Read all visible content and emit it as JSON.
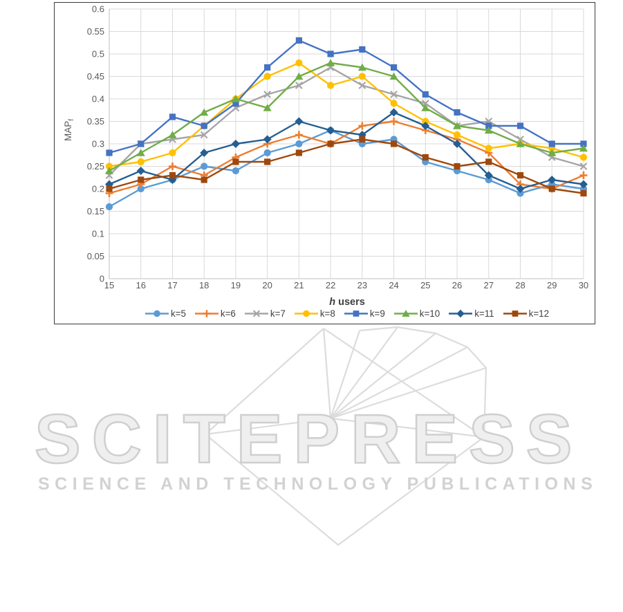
{
  "watermark": {
    "brand": "SCITEPRESS",
    "tagline": "SCIENCE AND TECHNOLOGY PUBLICATIONS"
  },
  "chart_data": {
    "type": "line",
    "title": "",
    "xlabel_italic": "h",
    "xlabel_rest": " users",
    "ylabel_main": "MAP",
    "ylabel_sub": "f",
    "ylim": [
      0,
      0.6
    ],
    "ytick_step": 0.05,
    "grid": true,
    "legend_position": "bottom",
    "grid_color": "#D9D9D9",
    "axis_color": "#BFBFBF",
    "tick_label_color": "#595959",
    "y_ticks": [
      "0",
      "0.05",
      "0.1",
      "0.15",
      "0.2",
      "0.25",
      "0.3",
      "0.35",
      "0.4",
      "0.45",
      "0.5",
      "0.55",
      "0.6"
    ],
    "categories": [
      "15",
      "16",
      "17",
      "18",
      "19",
      "20",
      "21",
      "22",
      "23",
      "24",
      "25",
      "26",
      "27",
      "28",
      "29",
      "30"
    ],
    "series": [
      {
        "name": "k=5",
        "color": "#5B9BD5",
        "marker": "circle",
        "values": [
          0.16,
          0.2,
          0.22,
          0.25,
          0.24,
          0.28,
          0.3,
          0.33,
          0.3,
          0.31,
          0.26,
          0.24,
          0.22,
          0.19,
          0.21,
          0.2
        ]
      },
      {
        "name": "k=6",
        "color": "#ED7D31",
        "marker": "plus",
        "values": [
          0.19,
          0.21,
          0.25,
          0.23,
          0.27,
          0.3,
          0.32,
          0.3,
          0.34,
          0.35,
          0.33,
          0.31,
          0.28,
          0.21,
          0.2,
          0.23
        ]
      },
      {
        "name": "k=7",
        "color": "#A5A5A5",
        "marker": "x",
        "values": [
          0.23,
          0.3,
          0.31,
          0.32,
          0.38,
          0.41,
          0.43,
          0.47,
          0.43,
          0.41,
          0.39,
          0.34,
          0.35,
          0.31,
          0.27,
          0.25
        ]
      },
      {
        "name": "k=8",
        "color": "#FFC000",
        "marker": "circle",
        "values": [
          0.25,
          0.26,
          0.28,
          0.34,
          0.4,
          0.45,
          0.48,
          0.43,
          0.45,
          0.39,
          0.35,
          0.32,
          0.29,
          0.3,
          0.29,
          0.27
        ]
      },
      {
        "name": "k=9",
        "color": "#4472C4",
        "marker": "square",
        "values": [
          0.28,
          0.3,
          0.36,
          0.34,
          0.39,
          0.47,
          0.53,
          0.5,
          0.51,
          0.47,
          0.41,
          0.37,
          0.34,
          0.34,
          0.3,
          0.3
        ]
      },
      {
        "name": "k=10",
        "color": "#70AD47",
        "marker": "triangle",
        "values": [
          0.24,
          0.28,
          0.32,
          0.37,
          0.4,
          0.38,
          0.45,
          0.48,
          0.47,
          0.45,
          0.38,
          0.34,
          0.33,
          0.3,
          0.28,
          0.29
        ]
      },
      {
        "name": "k=11",
        "color": "#255E91",
        "marker": "diamond",
        "values": [
          0.21,
          0.24,
          0.22,
          0.28,
          0.3,
          0.31,
          0.35,
          0.33,
          0.32,
          0.37,
          0.34,
          0.3,
          0.23,
          0.2,
          0.22,
          0.21
        ]
      },
      {
        "name": "k=12",
        "color": "#9E480E",
        "marker": "square",
        "values": [
          0.2,
          0.22,
          0.23,
          0.22,
          0.26,
          0.26,
          0.28,
          0.3,
          0.31,
          0.3,
          0.27,
          0.25,
          0.26,
          0.23,
          0.2,
          0.19
        ]
      }
    ]
  }
}
